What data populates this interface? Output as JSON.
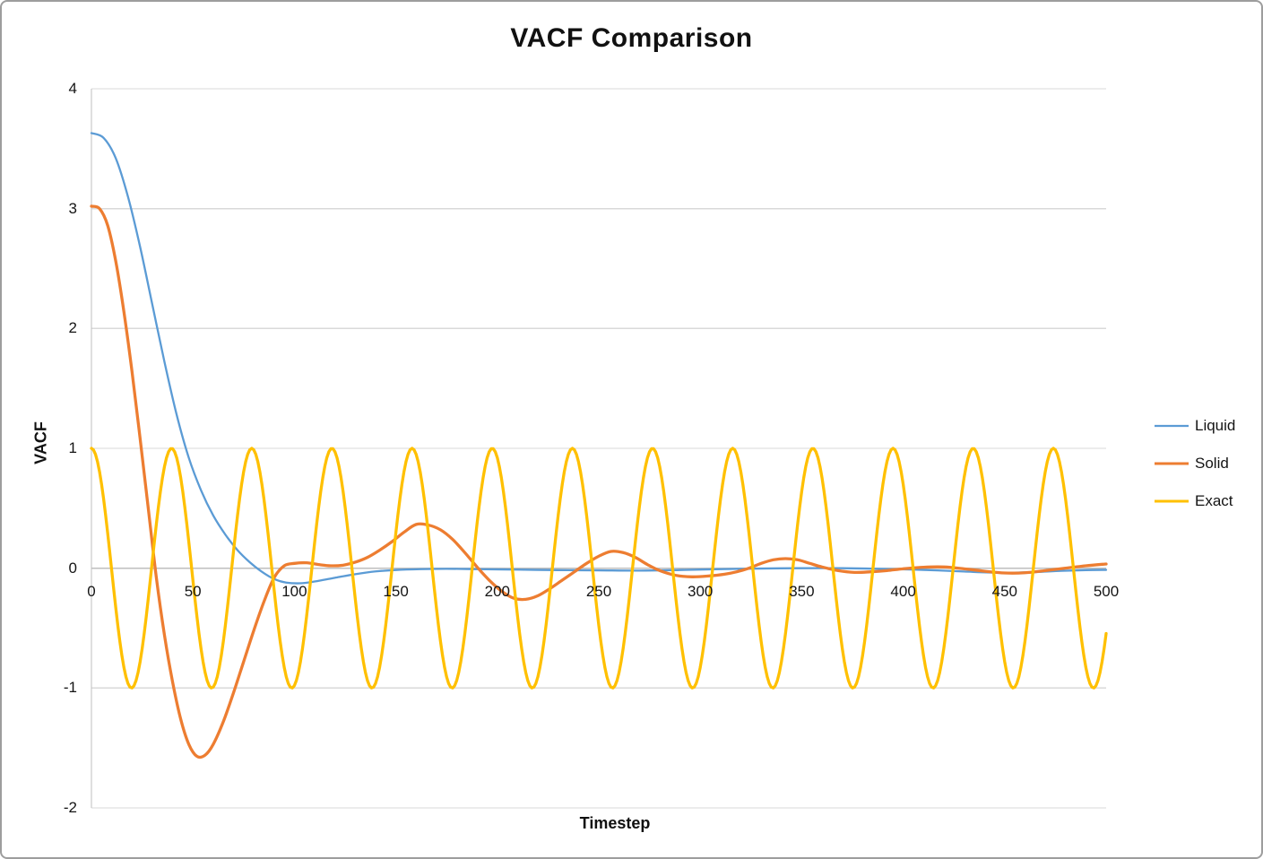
{
  "title": "VACF Comparison",
  "chart_data": {
    "type": "line",
    "title": "VACF Comparison",
    "xlabel": "Timestep",
    "ylabel": "VACF",
    "xlim": [
      0,
      500
    ],
    "ylim": [
      -2,
      4
    ],
    "x_ticks": [
      0,
      50,
      100,
      150,
      200,
      250,
      300,
      350,
      400,
      450,
      500
    ],
    "y_ticks": [
      4,
      3,
      2,
      1,
      0,
      -1,
      -2
    ],
    "grid": "horizontal",
    "grid_color": "#D9D9D9",
    "axis_color": "#BFBFBF",
    "legend_position": "right",
    "legend_entries": [
      "Liquid",
      "Solid",
      "Exact"
    ],
    "series": [
      {
        "name": "Liquid",
        "color": "#5B9BD5",
        "stroke_width": 2.3,
        "points": [
          [
            0,
            3.63
          ],
          [
            6,
            3.59
          ],
          [
            12,
            3.42
          ],
          [
            18,
            3.1
          ],
          [
            24,
            2.68
          ],
          [
            30,
            2.2
          ],
          [
            36,
            1.72
          ],
          [
            42,
            1.28
          ],
          [
            48,
            0.92
          ],
          [
            54,
            0.65
          ],
          [
            60,
            0.44
          ],
          [
            66,
            0.28
          ],
          [
            72,
            0.15
          ],
          [
            78,
            0.05
          ],
          [
            84,
            -0.03
          ],
          [
            90,
            -0.09
          ],
          [
            96,
            -0.12
          ],
          [
            104,
            -0.125
          ],
          [
            112,
            -0.105
          ],
          [
            120,
            -0.08
          ],
          [
            130,
            -0.05
          ],
          [
            140,
            -0.027
          ],
          [
            150,
            -0.015
          ],
          [
            162,
            -0.008
          ],
          [
            175,
            -0.005
          ],
          [
            190,
            -0.008
          ],
          [
            210,
            -0.012
          ],
          [
            230,
            -0.016
          ],
          [
            250,
            -0.018
          ],
          [
            270,
            -0.02
          ],
          [
            290,
            -0.015
          ],
          [
            310,
            -0.008
          ],
          [
            330,
            -0.003
          ],
          [
            350,
            0.0
          ],
          [
            370,
            0.0
          ],
          [
            390,
            -0.006
          ],
          [
            410,
            -0.014
          ],
          [
            430,
            -0.028
          ],
          [
            448,
            -0.038
          ],
          [
            462,
            -0.034
          ],
          [
            478,
            -0.022
          ],
          [
            490,
            -0.016
          ],
          [
            500,
            -0.014
          ]
        ]
      },
      {
        "name": "Solid",
        "color": "#ED7D31",
        "stroke_width": 3.3,
        "points": [
          [
            0,
            3.02
          ],
          [
            4,
            3.0
          ],
          [
            8,
            2.86
          ],
          [
            12,
            2.56
          ],
          [
            16,
            2.14
          ],
          [
            20,
            1.64
          ],
          [
            24,
            1.08
          ],
          [
            28,
            0.5
          ],
          [
            32,
            -0.08
          ],
          [
            36,
            -0.56
          ],
          [
            40,
            -0.95
          ],
          [
            44,
            -1.26
          ],
          [
            48,
            -1.47
          ],
          [
            52,
            -1.57
          ],
          [
            56,
            -1.56
          ],
          [
            60,
            -1.47
          ],
          [
            65,
            -1.28
          ],
          [
            70,
            -1.04
          ],
          [
            75,
            -0.78
          ],
          [
            80,
            -0.52
          ],
          [
            85,
            -0.28
          ],
          [
            90,
            -0.08
          ],
          [
            95,
            0.02
          ],
          [
            100,
            0.04
          ],
          [
            106,
            0.045
          ],
          [
            112,
            0.03
          ],
          [
            118,
            0.02
          ],
          [
            124,
            0.025
          ],
          [
            130,
            0.05
          ],
          [
            136,
            0.09
          ],
          [
            142,
            0.15
          ],
          [
            148,
            0.22
          ],
          [
            154,
            0.3
          ],
          [
            160,
            0.365
          ],
          [
            166,
            0.36
          ],
          [
            172,
            0.32
          ],
          [
            178,
            0.24
          ],
          [
            184,
            0.13
          ],
          [
            190,
            0.01
          ],
          [
            196,
            -0.1
          ],
          [
            202,
            -0.19
          ],
          [
            208,
            -0.25
          ],
          [
            214,
            -0.26
          ],
          [
            220,
            -0.23
          ],
          [
            226,
            -0.17
          ],
          [
            232,
            -0.1
          ],
          [
            238,
            -0.03
          ],
          [
            244,
            0.04
          ],
          [
            250,
            0.1
          ],
          [
            256,
            0.14
          ],
          [
            262,
            0.13
          ],
          [
            268,
            0.09
          ],
          [
            274,
            0.03
          ],
          [
            280,
            -0.02
          ],
          [
            288,
            -0.06
          ],
          [
            296,
            -0.072
          ],
          [
            304,
            -0.065
          ],
          [
            312,
            -0.05
          ],
          [
            318,
            -0.03
          ],
          [
            324,
            0.0
          ],
          [
            330,
            0.04
          ],
          [
            336,
            0.07
          ],
          [
            342,
            0.08
          ],
          [
            348,
            0.07
          ],
          [
            354,
            0.04
          ],
          [
            360,
            0.01
          ],
          [
            368,
            -0.02
          ],
          [
            376,
            -0.035
          ],
          [
            384,
            -0.03
          ],
          [
            392,
            -0.02
          ],
          [
            400,
            -0.005
          ],
          [
            410,
            0.008
          ],
          [
            420,
            0.01
          ],
          [
            430,
            -0.005
          ],
          [
            440,
            -0.025
          ],
          [
            450,
            -0.04
          ],
          [
            460,
            -0.038
          ],
          [
            470,
            -0.02
          ],
          [
            480,
            0.0
          ],
          [
            490,
            0.02
          ],
          [
            500,
            0.035
          ]
        ]
      },
      {
        "name": "Exact",
        "color": "#FFC000",
        "stroke_width": 3.3,
        "wave": {
          "shape": "cosine",
          "amplitude": 1.0,
          "period": 39.5,
          "phase_shift": 0,
          "x_start": 0,
          "x_end": 500,
          "sample_step": 1
        }
      }
    ]
  }
}
